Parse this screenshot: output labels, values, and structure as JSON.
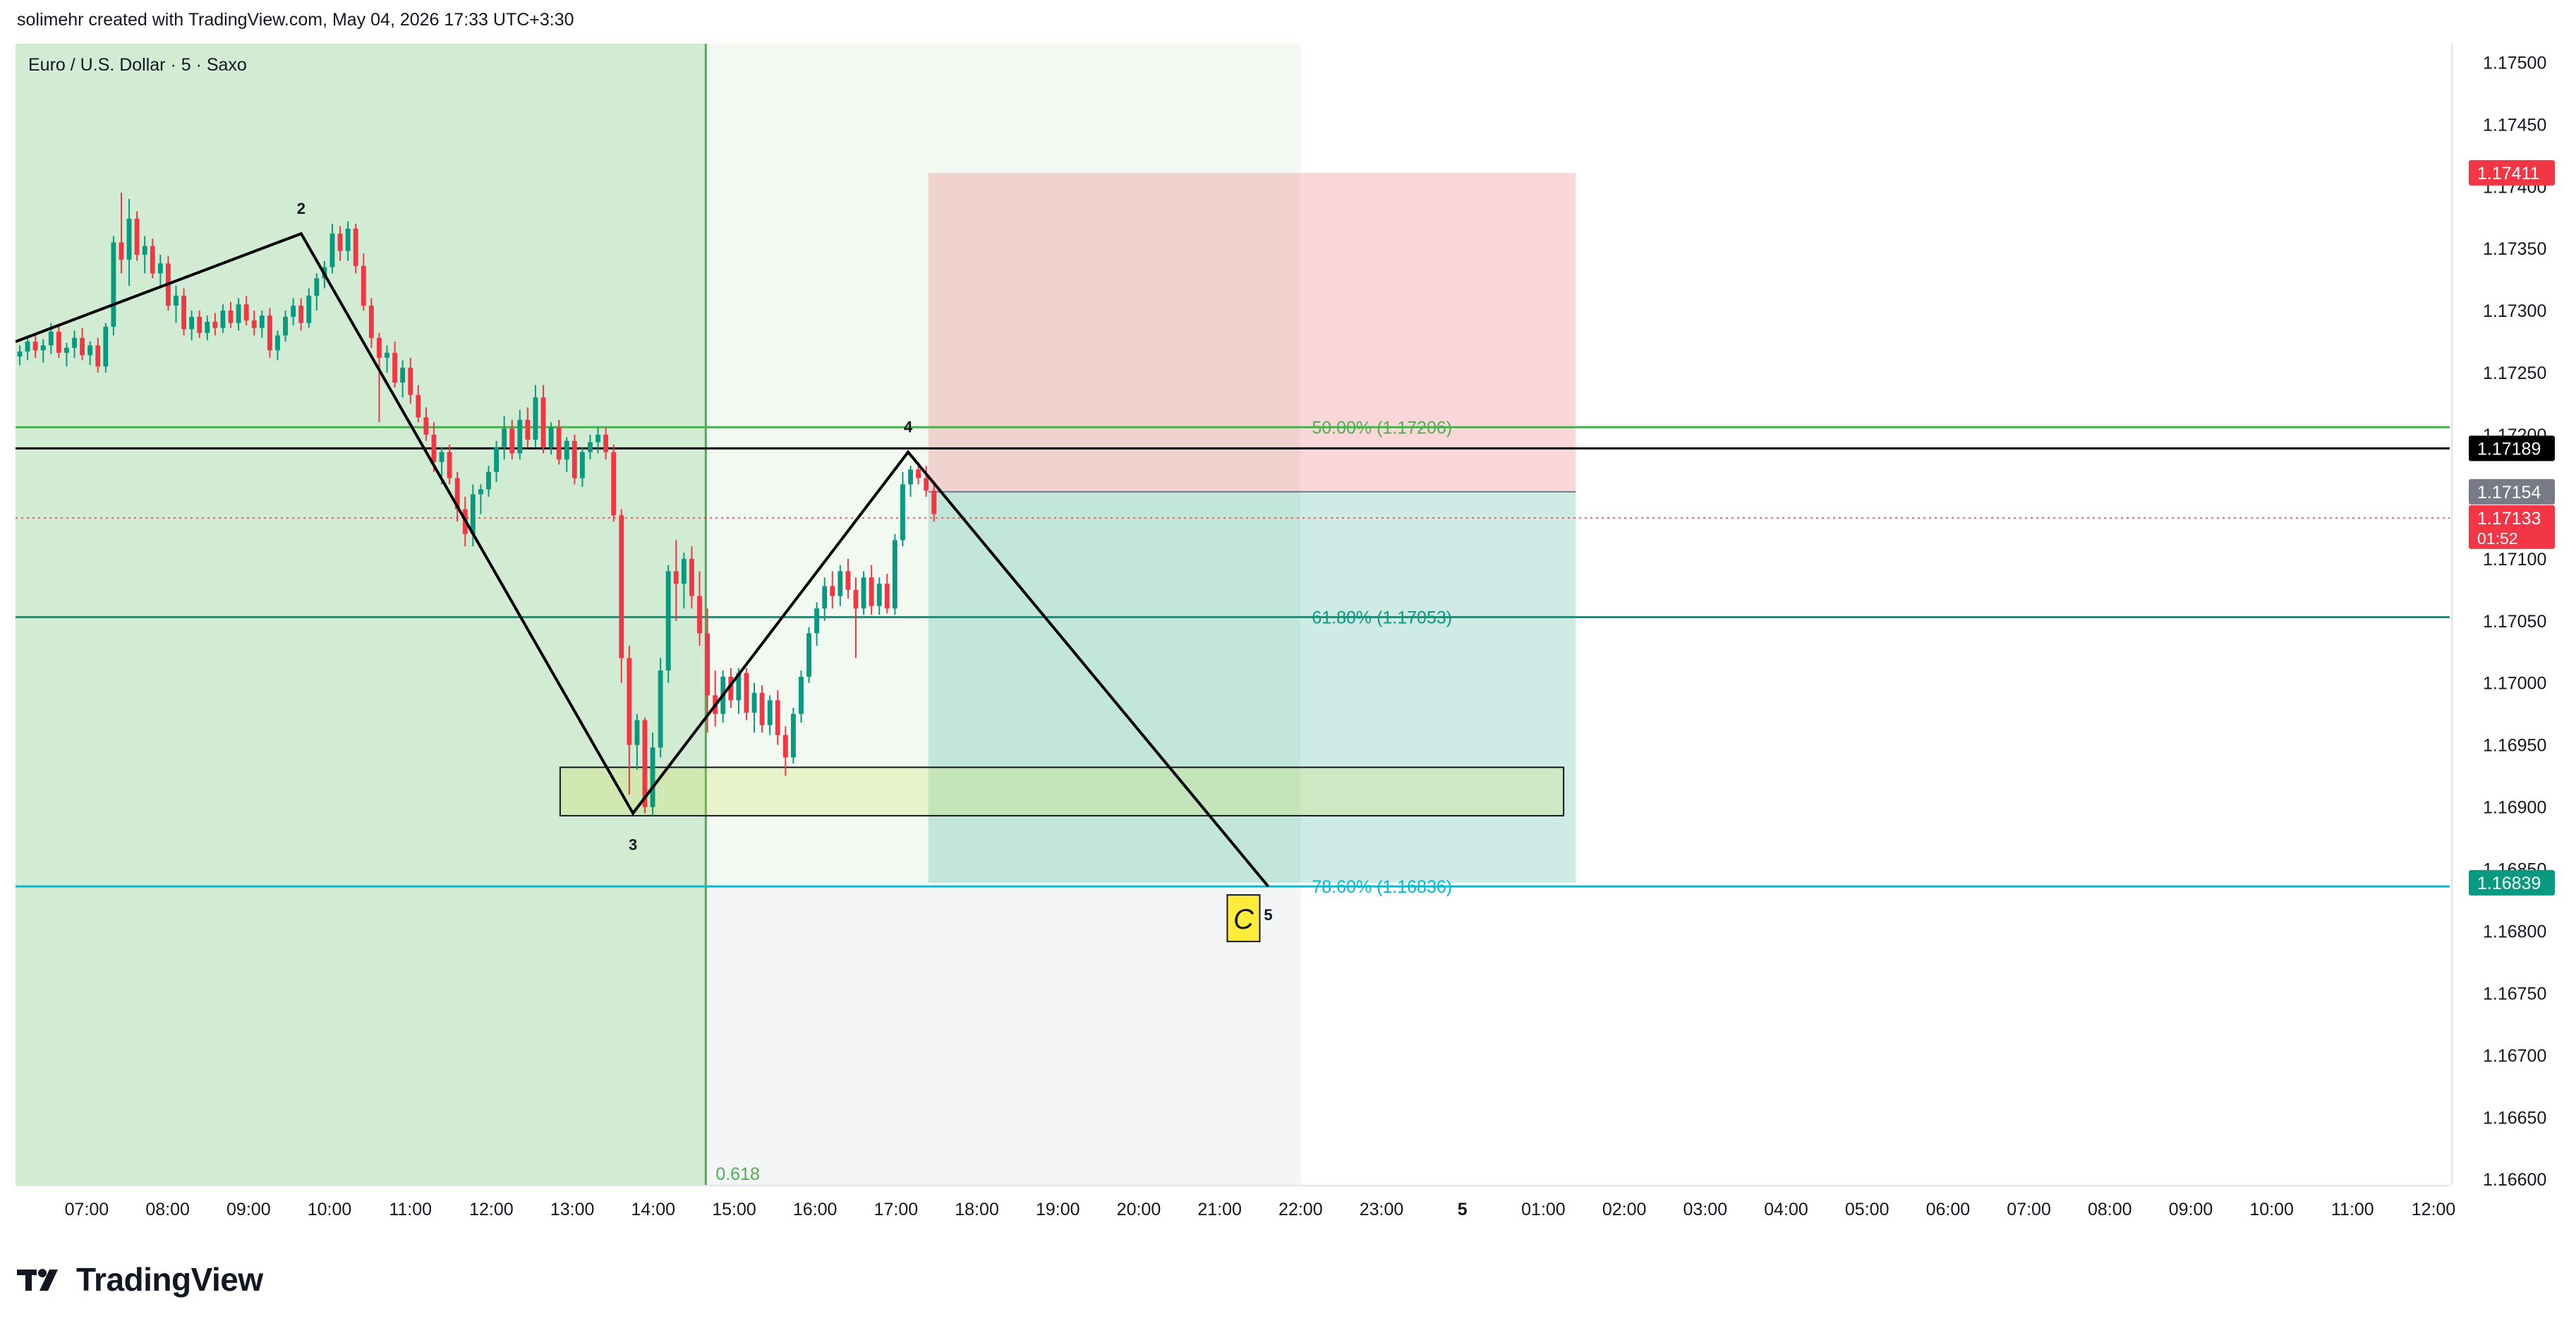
{
  "header": {
    "credit": "solimehr created with TradingView.com, May 04, 2026 17:33 UTC+3:30"
  },
  "footer": {
    "brand": "TradingView",
    "logo_icon": "tradingview-logo-icon"
  },
  "chart_data": {
    "type": "candlestick",
    "title": "Euro / U.S. Dollar · 5 · Saxo",
    "ylim": [
      1.16595,
      1.17515
    ],
    "price_ticks": [
      "1.17500",
      "1.17450",
      "1.17400",
      "1.17350",
      "1.17300",
      "1.17250",
      "1.17200",
      "1.17150",
      "1.17100",
      "1.17050",
      "1.17000",
      "1.16950",
      "1.16900",
      "1.16850",
      "1.16800",
      "1.16750",
      "1.16700",
      "1.16650",
      "1.16600"
    ],
    "time_ticks": [
      "07:00",
      "08:00",
      "09:00",
      "10:00",
      "11:00",
      "12:00",
      "13:00",
      "14:00",
      "15:00",
      "16:00",
      "17:00",
      "18:00",
      "19:00",
      "20:00",
      "21:00",
      "22:00",
      "23:00",
      "5",
      "01:00",
      "02:00",
      "03:00",
      "04:00",
      "05:00",
      "06:00",
      "07:00",
      "08:00",
      "09:00",
      "10:00",
      "11:00",
      "12:00"
    ],
    "time_start_hour": 6.12,
    "time_end_hour": 36.2,
    "price_labels": [
      {
        "text": "1.17411",
        "price": 1.17411,
        "color": "#f23645"
      },
      {
        "text": "1.17189",
        "price": 1.17189,
        "color": "#000000"
      },
      {
        "text": "1.17154",
        "price": 1.17154,
        "color": "#787b86"
      },
      {
        "text": "1.17133",
        "price": 1.17133,
        "color": "#f23645",
        "sub": "01:52"
      },
      {
        "text": "1.16839",
        "price": 1.16839,
        "color": "#089981"
      }
    ],
    "fib_levels": [
      {
        "label": "50.00% (1.17206)",
        "price": 1.17206,
        "color": "#4caf50"
      },
      {
        "label": "61.80% (1.17053)",
        "price": 1.17053,
        "color": "#089981"
      },
      {
        "label": "78.60% (1.16836)",
        "price": 1.16836,
        "color": "#00bcd4"
      }
    ],
    "horizontal_line": {
      "price": 1.17189,
      "color": "#000000"
    },
    "current_price": 1.17133,
    "time_fib": {
      "label": "0.618",
      "hour": 14.65
    },
    "wave": [
      {
        "label": "",
        "hour": 6.12,
        "price": 1.17275
      },
      {
        "label": "2",
        "hour": 9.65,
        "price": 1.17362
      },
      {
        "label": "3",
        "hour": 13.75,
        "price": 1.16895
      },
      {
        "label": "4",
        "hour": 17.15,
        "price": 1.17186
      },
      {
        "label": "5",
        "hour": 21.6,
        "price": 1.16836
      }
    ],
    "pattern_tag": "C",
    "position": {
      "entry": 1.17154,
      "stop": 1.17411,
      "target": 1.16839,
      "start_hour": 17.4,
      "end_hour": 25.4
    },
    "zone_box": {
      "top": 1.16932,
      "bottom": 1.16893,
      "start_hour": 12.85,
      "end_hour": 25.25
    },
    "candles": [
      [
        1.17263,
        1.17272,
        1.17256,
        1.17267
      ],
      [
        1.17267,
        1.1728,
        1.1726,
        1.17275
      ],
      [
        1.17275,
        1.17282,
        1.17262,
        1.17268
      ],
      [
        1.17268,
        1.17277,
        1.17258,
        1.17272
      ],
      [
        1.17272,
        1.1729,
        1.17265,
        1.17283
      ],
      [
        1.17283,
        1.17288,
        1.17262,
        1.17266
      ],
      [
        1.17266,
        1.17274,
        1.17255,
        1.1727
      ],
      [
        1.1727,
        1.17284,
        1.17262,
        1.17278
      ],
      [
        1.17278,
        1.17286,
        1.1726,
        1.17264
      ],
      [
        1.17264,
        1.17275,
        1.17256,
        1.17272
      ],
      [
        1.17272,
        1.17278,
        1.1725,
        1.17255
      ],
      [
        1.17255,
        1.1729,
        1.1725,
        1.17287
      ],
      [
        1.17287,
        1.1736,
        1.1728,
        1.17355
      ],
      [
        1.17355,
        1.17395,
        1.1733,
        1.17341
      ],
      [
        1.17341,
        1.1739,
        1.1732,
        1.17374
      ],
      [
        1.17374,
        1.1738,
        1.1734,
        1.17345
      ],
      [
        1.17345,
        1.1736,
        1.1733,
        1.17352
      ],
      [
        1.17352,
        1.17358,
        1.17326,
        1.1733
      ],
      [
        1.1733,
        1.17345,
        1.1732,
        1.17338
      ],
      [
        1.17338,
        1.17344,
        1.173,
        1.17304
      ],
      [
        1.17304,
        1.1732,
        1.1729,
        1.17312
      ],
      [
        1.17312,
        1.17318,
        1.1728,
        1.17285
      ],
      [
        1.17285,
        1.173,
        1.17276,
        1.17295
      ],
      [
        1.17295,
        1.173,
        1.17278,
        1.17282
      ],
      [
        1.17282,
        1.17296,
        1.17276,
        1.17291
      ],
      [
        1.17291,
        1.17298,
        1.1728,
        1.17286
      ],
      [
        1.17286,
        1.17305,
        1.17282,
        1.173
      ],
      [
        1.173,
        1.17307,
        1.17286,
        1.1729
      ],
      [
        1.1729,
        1.1731,
        1.17284,
        1.17305
      ],
      [
        1.17305,
        1.17312,
        1.17288,
        1.17292
      ],
      [
        1.17292,
        1.173,
        1.1728,
        1.17286
      ],
      [
        1.17286,
        1.173,
        1.17278,
        1.17296
      ],
      [
        1.17296,
        1.17302,
        1.17262,
        1.17268
      ],
      [
        1.17268,
        1.17284,
        1.1726,
        1.1728
      ],
      [
        1.1728,
        1.173,
        1.17275,
        1.17295
      ],
      [
        1.17295,
        1.1731,
        1.17288,
        1.17304
      ],
      [
        1.17304,
        1.1731,
        1.17284,
        1.1729
      ],
      [
        1.1729,
        1.17318,
        1.17286,
        1.17312
      ],
      [
        1.17312,
        1.1733,
        1.173,
        1.17326
      ],
      [
        1.17326,
        1.1734,
        1.17318,
        1.17335
      ],
      [
        1.17335,
        1.1737,
        1.1733,
        1.17362
      ],
      [
        1.17362,
        1.17368,
        1.1734,
        1.17348
      ],
      [
        1.17348,
        1.17372,
        1.1734,
        1.17366
      ],
      [
        1.17366,
        1.1737,
        1.1733,
        1.17336
      ],
      [
        1.17336,
        1.17346,
        1.173,
        1.17304
      ],
      [
        1.17304,
        1.1731,
        1.1727,
        1.17278
      ],
      [
        1.17278,
        1.17282,
        1.1721,
        1.17262
      ],
      [
        1.17262,
        1.17272,
        1.1725,
        1.17266
      ],
      [
        1.17266,
        1.17275,
        1.17238,
        1.17242
      ],
      [
        1.17242,
        1.1726,
        1.1723,
        1.17254
      ],
      [
        1.17254,
        1.17262,
        1.17225,
        1.17232
      ],
      [
        1.17232,
        1.1724,
        1.1721,
        1.17214
      ],
      [
        1.17214,
        1.17222,
        1.17195,
        1.172
      ],
      [
        1.172,
        1.1721,
        1.1717,
        1.17178
      ],
      [
        1.17178,
        1.1719,
        1.1716,
        1.17186
      ],
      [
        1.17186,
        1.17192,
        1.1716,
        1.17165
      ],
      [
        1.17165,
        1.1717,
        1.1713,
        1.1714
      ],
      [
        1.1714,
        1.1715,
        1.1711,
        1.1712
      ],
      [
        1.1712,
        1.1716,
        1.1711,
        1.17152
      ],
      [
        1.17152,
        1.1716,
        1.17136,
        1.17156
      ],
      [
        1.17156,
        1.17175,
        1.1715,
        1.1717
      ],
      [
        1.1717,
        1.17195,
        1.17162,
        1.1719
      ],
      [
        1.1719,
        1.17215,
        1.1718,
        1.17205
      ],
      [
        1.17205,
        1.17212,
        1.1718,
        1.17185
      ],
      [
        1.17185,
        1.1722,
        1.1718,
        1.17212
      ],
      [
        1.17212,
        1.17222,
        1.1719,
        1.17196
      ],
      [
        1.17196,
        1.1724,
        1.1719,
        1.1723
      ],
      [
        1.1723,
        1.1724,
        1.17185,
        1.1719
      ],
      [
        1.1719,
        1.1721,
        1.17184,
        1.17206
      ],
      [
        1.17206,
        1.17212,
        1.17176,
        1.1718
      ],
      [
        1.1718,
        1.17198,
        1.1717,
        1.17195
      ],
      [
        1.17195,
        1.172,
        1.1716,
        1.17165
      ],
      [
        1.17165,
        1.1719,
        1.17158,
        1.17186
      ],
      [
        1.17186,
        1.172,
        1.1718,
        1.17194
      ],
      [
        1.17194,
        1.17206,
        1.17185,
        1.172
      ],
      [
        1.172,
        1.17206,
        1.1718,
        1.17186
      ],
      [
        1.17186,
        1.17192,
        1.1713,
        1.17135
      ],
      [
        1.17135,
        1.1714,
        1.17,
        1.1702
      ],
      [
        1.1702,
        1.1703,
        1.1691,
        1.1695
      ],
      [
        1.1695,
        1.16975,
        1.1693,
        1.1697
      ],
      [
        1.1697,
        1.16972,
        1.16895,
        1.169
      ],
      [
        1.169,
        1.1696,
        1.16893,
        1.16948
      ],
      [
        1.16948,
        1.1702,
        1.1694,
        1.1701
      ],
      [
        1.1701,
        1.17095,
        1.17,
        1.1709
      ],
      [
        1.1709,
        1.17115,
        1.1705,
        1.1708
      ],
      [
        1.1708,
        1.17105,
        1.1706,
        1.171
      ],
      [
        1.171,
        1.1711,
        1.1706,
        1.1707
      ],
      [
        1.1707,
        1.1709,
        1.1703,
        1.1704
      ],
      [
        1.1704,
        1.1706,
        1.1696,
        1.1699
      ],
      [
        1.1699,
        1.1701,
        1.16965,
        1.16975
      ],
      [
        1.16975,
        1.1701,
        1.16968,
        1.17005
      ],
      [
        1.17005,
        1.17012,
        1.1698,
        1.16986
      ],
      [
        1.16986,
        1.17012,
        1.16975,
        1.17008
      ],
      [
        1.17008,
        1.17012,
        1.1697,
        1.16976
      ],
      [
        1.16976,
        1.17,
        1.1696,
        1.16992
      ],
      [
        1.16992,
        1.16998,
        1.1696,
        1.16966
      ],
      [
        1.16966,
        1.1699,
        1.16958,
        1.16986
      ],
      [
        1.16986,
        1.16994,
        1.1695,
        1.16958
      ],
      [
        1.16958,
        1.16965,
        1.16925,
        1.1694
      ],
      [
        1.1694,
        1.1698,
        1.16935,
        1.16975
      ],
      [
        1.16975,
        1.1701,
        1.16968,
        1.17005
      ],
      [
        1.17005,
        1.17045,
        1.17,
        1.1704
      ],
      [
        1.1704,
        1.17065,
        1.1703,
        1.1706
      ],
      [
        1.1706,
        1.17085,
        1.1705,
        1.17078
      ],
      [
        1.17078,
        1.1709,
        1.1706,
        1.1707
      ],
      [
        1.1707,
        1.17095,
        1.17062,
        1.1709
      ],
      [
        1.1709,
        1.171,
        1.17068,
        1.17075
      ],
      [
        1.17075,
        1.17085,
        1.1702,
        1.1706
      ],
      [
        1.1706,
        1.1709,
        1.17055,
        1.17085
      ],
      [
        1.17085,
        1.17095,
        1.17055,
        1.17062
      ],
      [
        1.17062,
        1.17085,
        1.17055,
        1.1708
      ],
      [
        1.1708,
        1.17088,
        1.17056,
        1.1706
      ],
      [
        1.1706,
        1.1712,
        1.17055,
        1.17115
      ],
      [
        1.17115,
        1.1717,
        1.1711,
        1.1716
      ],
      [
        1.1716,
        1.17175,
        1.1715,
        1.17172
      ],
      [
        1.17172,
        1.17178,
        1.1716,
        1.17165
      ],
      [
        1.17165,
        1.17175,
        1.1715,
        1.17155
      ],
      [
        1.17155,
        1.17162,
        1.1713,
        1.17136
      ]
    ]
  }
}
